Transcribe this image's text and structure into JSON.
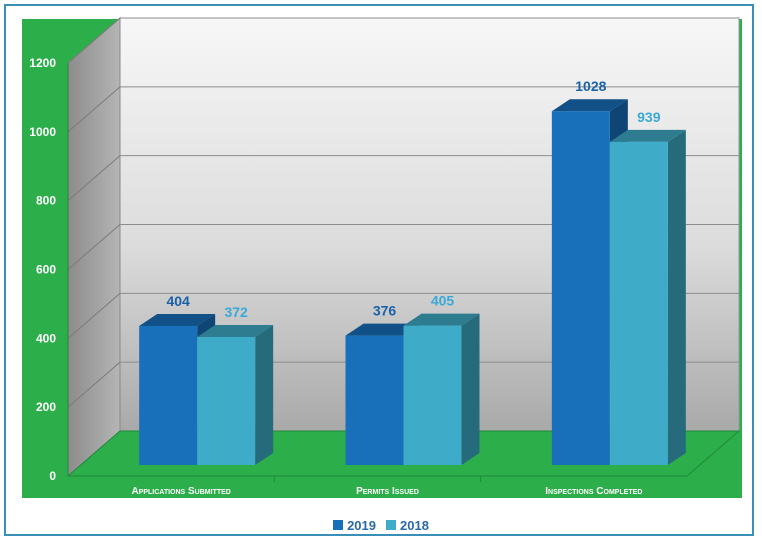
{
  "chart_data": {
    "type": "bar",
    "categories": [
      "Applications Submitted",
      "Permits Issued",
      "Inspections Completed"
    ],
    "series": [
      {
        "name": "2019",
        "values": [
          404,
          376,
          1028
        ],
        "color": "#1870bb",
        "label_color": "#1a62a8"
      },
      {
        "name": "2018",
        "values": [
          372,
          405,
          939
        ],
        "color": "#3eacc8",
        "label_color": "#3aa9d6"
      }
    ],
    "y_ticks": [
      "0",
      "200",
      "400",
      "600",
      "800",
      "1000",
      "1200"
    ],
    "ylim": [
      0,
      1200
    ],
    "grid": true,
    "legend_position": "bottom",
    "colors": {
      "plot_background": "#2cae4a",
      "wall": "#ebebeb",
      "axis_label_text": "#ffffff"
    }
  }
}
